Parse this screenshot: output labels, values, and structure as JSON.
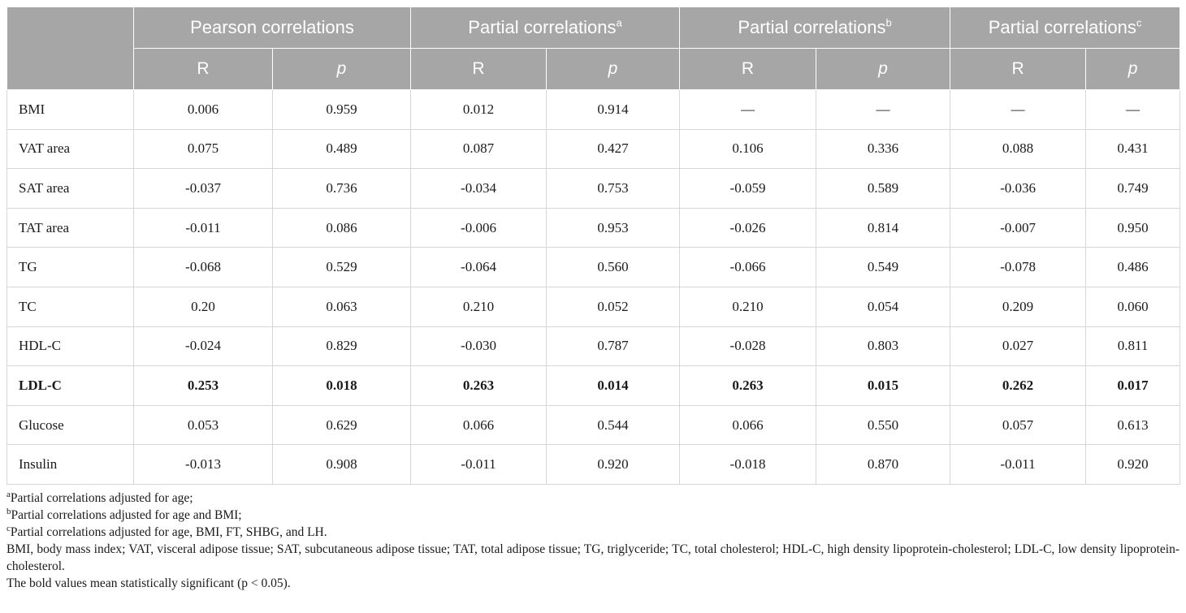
{
  "table": {
    "group_headers": [
      {
        "label": "Pearson correlations",
        "sup": ""
      },
      {
        "label": "Partial correlations",
        "sup": "a"
      },
      {
        "label": "Partial correlations",
        "sup": "b"
      },
      {
        "label": "Partial correlations",
        "sup": "c"
      }
    ],
    "sub_headers": [
      "R",
      "p",
      "R",
      "p",
      "R",
      "p",
      "R",
      "p"
    ],
    "rows": [
      {
        "label": "BMI",
        "values": [
          "0.006",
          "0.959",
          "0.012",
          "0.914",
          "—",
          "—",
          "—",
          "—"
        ],
        "bold": false
      },
      {
        "label": "VAT area",
        "values": [
          "0.075",
          "0.489",
          "0.087",
          "0.427",
          "0.106",
          "0.336",
          "0.088",
          "0.431"
        ],
        "bold": false
      },
      {
        "label": "SAT area",
        "values": [
          "-0.037",
          "0.736",
          "-0.034",
          "0.753",
          "-0.059",
          "0.589",
          "-0.036",
          "0.749"
        ],
        "bold": false
      },
      {
        "label": "TAT area",
        "values": [
          "-0.011",
          "0.086",
          "-0.006",
          "0.953",
          "-0.026",
          "0.814",
          "-0.007",
          "0.950"
        ],
        "bold": false
      },
      {
        "label": "TG",
        "values": [
          "-0.068",
          "0.529",
          "-0.064",
          "0.560",
          "-0.066",
          "0.549",
          "-0.078",
          "0.486"
        ],
        "bold": false
      },
      {
        "label": "TC",
        "values": [
          "0.20",
          "0.063",
          "0.210",
          "0.052",
          "0.210",
          "0.054",
          "0.209",
          "0.060"
        ],
        "bold": false
      },
      {
        "label": "HDL-C",
        "values": [
          "-0.024",
          "0.829",
          "-0.030",
          "0.787",
          "-0.028",
          "0.803",
          "0.027",
          "0.811"
        ],
        "bold": false
      },
      {
        "label": "LDL-C",
        "values": [
          "0.253",
          "0.018",
          "0.263",
          "0.014",
          "0.263",
          "0.015",
          "0.262",
          "0.017"
        ],
        "bold": true
      },
      {
        "label": "Glucose",
        "values": [
          "0.053",
          "0.629",
          "0.066",
          "0.544",
          "0.066",
          "0.550",
          "0.057",
          "0.613"
        ],
        "bold": false
      },
      {
        "label": "Insulin",
        "values": [
          "-0.013",
          "0.908",
          "-0.011",
          "0.920",
          "-0.018",
          "0.870",
          "-0.011",
          "0.920"
        ],
        "bold": false
      }
    ]
  },
  "footnotes": [
    {
      "mark": "a",
      "text": "Partial correlations adjusted for age;"
    },
    {
      "mark": "b",
      "text": "Partial correlations adjusted for age and BMI;"
    },
    {
      "mark": "c",
      "text": "Partial correlations adjusted for age, BMI, FT, SHBG, and LH."
    }
  ],
  "abbreviations": "BMI, body mass index; VAT, visceral adipose tissue; SAT, subcutaneous adipose tissue; TAT, total adipose tissue; TG, triglyceride; TC, total cholesterol; HDL-C, high density lipoprotein-cholesterol; LDL-C, low density lipoprotein-cholesterol.",
  "bold_note": "The bold values mean statistically significant (p < 0.05).",
  "colors": {
    "header_bg": "#a6a6a6",
    "header_text": "#ffffff",
    "grid": "#d6d6d6"
  }
}
